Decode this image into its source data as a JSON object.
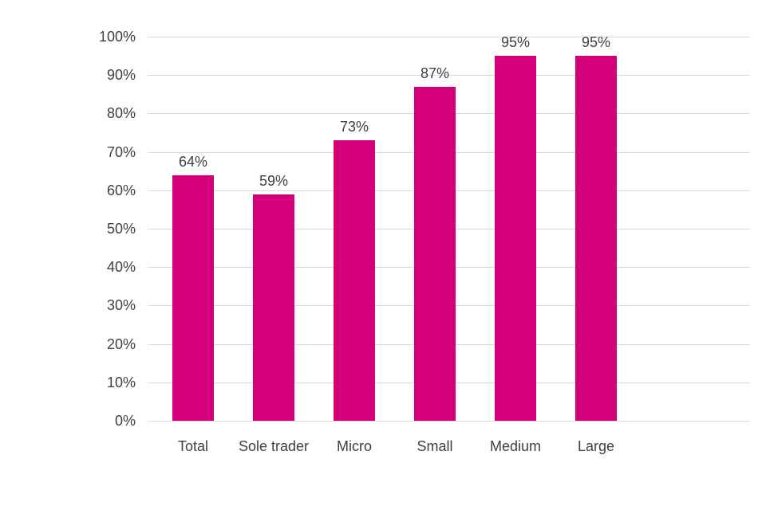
{
  "chart_data": {
    "type": "bar",
    "title": "",
    "categories": [
      "Total",
      "Sole trader",
      "Micro",
      "Small",
      "Medium",
      "Large"
    ],
    "values": [
      64,
      59,
      73,
      87,
      95,
      95
    ],
    "value_labels": [
      "64%",
      "59%",
      "73%",
      "87%",
      "95%",
      "95%"
    ],
    "xlabel": "",
    "ylabel": "",
    "ylim": [
      0,
      100
    ],
    "yticks": [
      0,
      10,
      20,
      30,
      40,
      50,
      60,
      70,
      80,
      90,
      100
    ],
    "ytick_labels": [
      "0%",
      "10%",
      "20%",
      "30%",
      "40%",
      "50%",
      "60%",
      "70%",
      "80%",
      "90%",
      "100%"
    ],
    "grid": true,
    "legend_position": "none",
    "colors": {
      "bar": "#d4007a",
      "gridline": "#d9d9d9",
      "text": "#404040",
      "background": "#ffffff"
    }
  }
}
